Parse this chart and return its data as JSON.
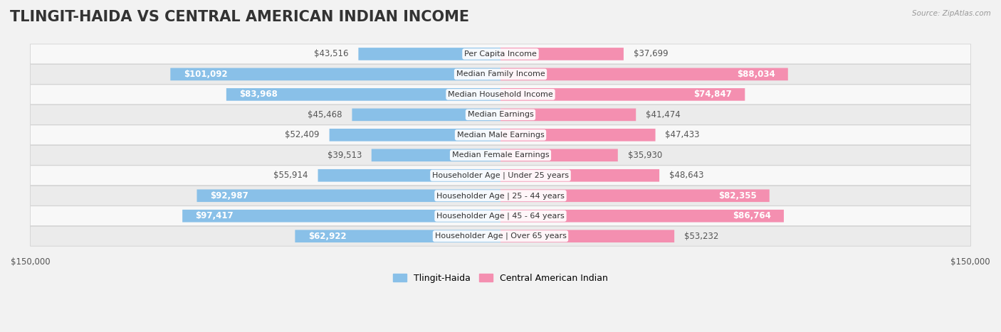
{
  "title": "TLINGIT-HAIDA VS CENTRAL AMERICAN INDIAN INCOME",
  "source": "Source: ZipAtlas.com",
  "categories": [
    "Per Capita Income",
    "Median Family Income",
    "Median Household Income",
    "Median Earnings",
    "Median Male Earnings",
    "Median Female Earnings",
    "Householder Age | Under 25 years",
    "Householder Age | 25 - 44 years",
    "Householder Age | 45 - 64 years",
    "Householder Age | Over 65 years"
  ],
  "tlingit_values": [
    43516,
    101092,
    83968,
    45468,
    52409,
    39513,
    55914,
    92987,
    97417,
    62922
  ],
  "central_values": [
    37699,
    88034,
    74847,
    41474,
    47433,
    35930,
    48643,
    82355,
    86764,
    53232
  ],
  "tlingit_labels": [
    "$43,516",
    "$101,092",
    "$83,968",
    "$45,468",
    "$52,409",
    "$39,513",
    "$55,914",
    "$92,987",
    "$97,417",
    "$62,922"
  ],
  "central_labels": [
    "$37,699",
    "$88,034",
    "$74,847",
    "$41,474",
    "$47,433",
    "$35,930",
    "$48,643",
    "$82,355",
    "$86,764",
    "$53,232"
  ],
  "tlingit_color": "#89C0E8",
  "central_color": "#F48FB0",
  "max_value": 150000,
  "bg_color": "#F2F2F2",
  "row_light": "#F8F8F8",
  "row_dark": "#EBEBEB",
  "legend_tlingit": "Tlingit-Haida",
  "legend_central": "Central American Indian",
  "xlabel_left": "$150,000",
  "xlabel_right": "$150,000",
  "title_fontsize": 15,
  "label_fontsize": 8.5,
  "category_fontsize": 8.0,
  "inside_label_threshold": 60000
}
